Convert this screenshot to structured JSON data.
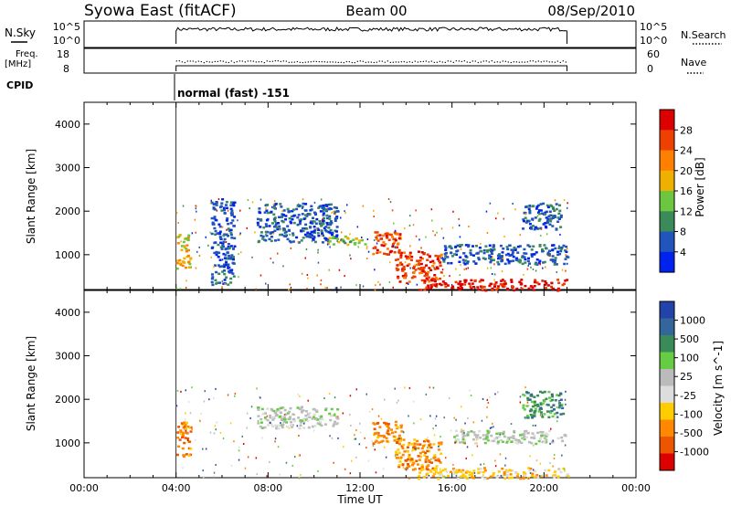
{
  "header": {
    "station": "Syowa East (fitACF)",
    "beam": "Beam 00",
    "date": "08/Sep/2010"
  },
  "top_panels": {
    "nsky_label": "N.Sky",
    "nsky_ticks": [
      "10^5",
      "10^0"
    ],
    "nsearch_label": "N.Search",
    "nsearch_ticks": [
      "10^5",
      "10^0"
    ],
    "freq_label_1": "Freq.",
    "freq_label_2": "[MHz]",
    "freq_ticks": [
      "18",
      "8"
    ],
    "nave_label": "Nave",
    "nave_ticks": [
      "60",
      "0"
    ],
    "cpid_label": "CPID",
    "cpid_text": "normal (fast) -151"
  },
  "colors": {
    "power_scale": [
      "#0022ee",
      "#2255bb",
      "#3a8a5a",
      "#6cc640",
      "#f0b000",
      "#ff8000",
      "#ee4000",
      "#dd0000"
    ],
    "velocity_scale": [
      "#2244aa",
      "#33669a",
      "#3a8a5a",
      "#66cc44",
      "#bbbbbb",
      "#dddddd",
      "#ffcc00",
      "#ff8800",
      "#ee5500",
      "#dd0000"
    ],
    "ground_scatter": "#a8a8a8"
  },
  "chart_data": [
    {
      "type": "heatmap",
      "name": "power",
      "ylabel": "Slant Range [km]",
      "ylim": [
        200,
        4500
      ],
      "yticks": [
        "1000",
        "2000",
        "3000",
        "4000"
      ],
      "xlim": [
        "00:00",
        "24:00"
      ],
      "xticks": [
        "00:00",
        "04:00",
        "08:00",
        "12:00",
        "16:00",
        "20:00",
        "00:00"
      ],
      "colorbar_label": "Power [dB]",
      "colorbar_ticks": [
        "4",
        "8",
        "12",
        "16",
        "20",
        "24",
        "28"
      ],
      "data_start": "04:00",
      "data_end": "21:00",
      "regions": [
        {
          "t_start": 4.0,
          "t_end": 4.6,
          "r_lo": 700,
          "r_hi": 1500,
          "level": 4
        },
        {
          "t_start": 5.5,
          "t_end": 6.5,
          "r_lo": 300,
          "r_hi": 2300,
          "level": 1
        },
        {
          "t_start": 7.5,
          "t_end": 11.0,
          "r_lo": 1300,
          "r_hi": 2200,
          "level": 1
        },
        {
          "t_start": 10.5,
          "t_end": 12.2,
          "r_lo": 1250,
          "r_hi": 1450,
          "level": 3
        },
        {
          "t_start": 12.5,
          "t_end": 13.8,
          "r_lo": 1000,
          "r_hi": 1550,
          "level": 6
        },
        {
          "t_start": 13.5,
          "t_end": 15.5,
          "r_lo": 400,
          "r_hi": 1100,
          "level": 6
        },
        {
          "t_start": 14.5,
          "t_end": 21.0,
          "r_lo": 200,
          "r_hi": 450,
          "level": 7
        },
        {
          "t_start": 15.5,
          "t_end": 21.0,
          "r_lo": 800,
          "r_hi": 1250,
          "level": 1
        },
        {
          "t_start": 19.0,
          "t_end": 20.8,
          "r_lo": 1600,
          "r_hi": 2200,
          "level": 1
        }
      ]
    },
    {
      "type": "heatmap",
      "name": "velocity",
      "ylabel": "Slant Range [km]",
      "ylim": [
        200,
        4500
      ],
      "yticks": [
        "1000",
        "2000",
        "3000",
        "4000"
      ],
      "xlim": [
        "00:00",
        "24:00"
      ],
      "xticks": [
        "00:00",
        "04:00",
        "08:00",
        "12:00",
        "16:00",
        "20:00",
        "00:00"
      ],
      "xlabel": "Time UT",
      "colorbar_label": "Velocity [m s^-1]",
      "colorbar_ticks": [
        "1000",
        "500",
        "100",
        "25",
        "-25",
        "-100",
        "-500",
        "-1000"
      ],
      "data_start": "04:00",
      "data_end": "21:00",
      "regions": [
        {
          "t_start": 4.0,
          "t_end": 4.6,
          "r_lo": 700,
          "r_hi": 1500,
          "level": 7
        },
        {
          "t_start": 7.5,
          "t_end": 11.0,
          "r_lo": 1350,
          "r_hi": 1850,
          "level": 4
        },
        {
          "t_start": 12.5,
          "t_end": 13.8,
          "r_lo": 1000,
          "r_hi": 1550,
          "level": 7
        },
        {
          "t_start": 13.5,
          "t_end": 15.5,
          "r_lo": 400,
          "r_hi": 1100,
          "level": 7
        },
        {
          "t_start": 14.5,
          "t_end": 21.0,
          "r_lo": 200,
          "r_hi": 450,
          "level": 6
        },
        {
          "t_start": 16.0,
          "t_end": 21.0,
          "r_lo": 1000,
          "r_hi": 1300,
          "level": 4
        },
        {
          "t_start": 19.0,
          "t_end": 20.8,
          "r_lo": 1600,
          "r_hi": 2200,
          "level": 2
        }
      ]
    }
  ]
}
